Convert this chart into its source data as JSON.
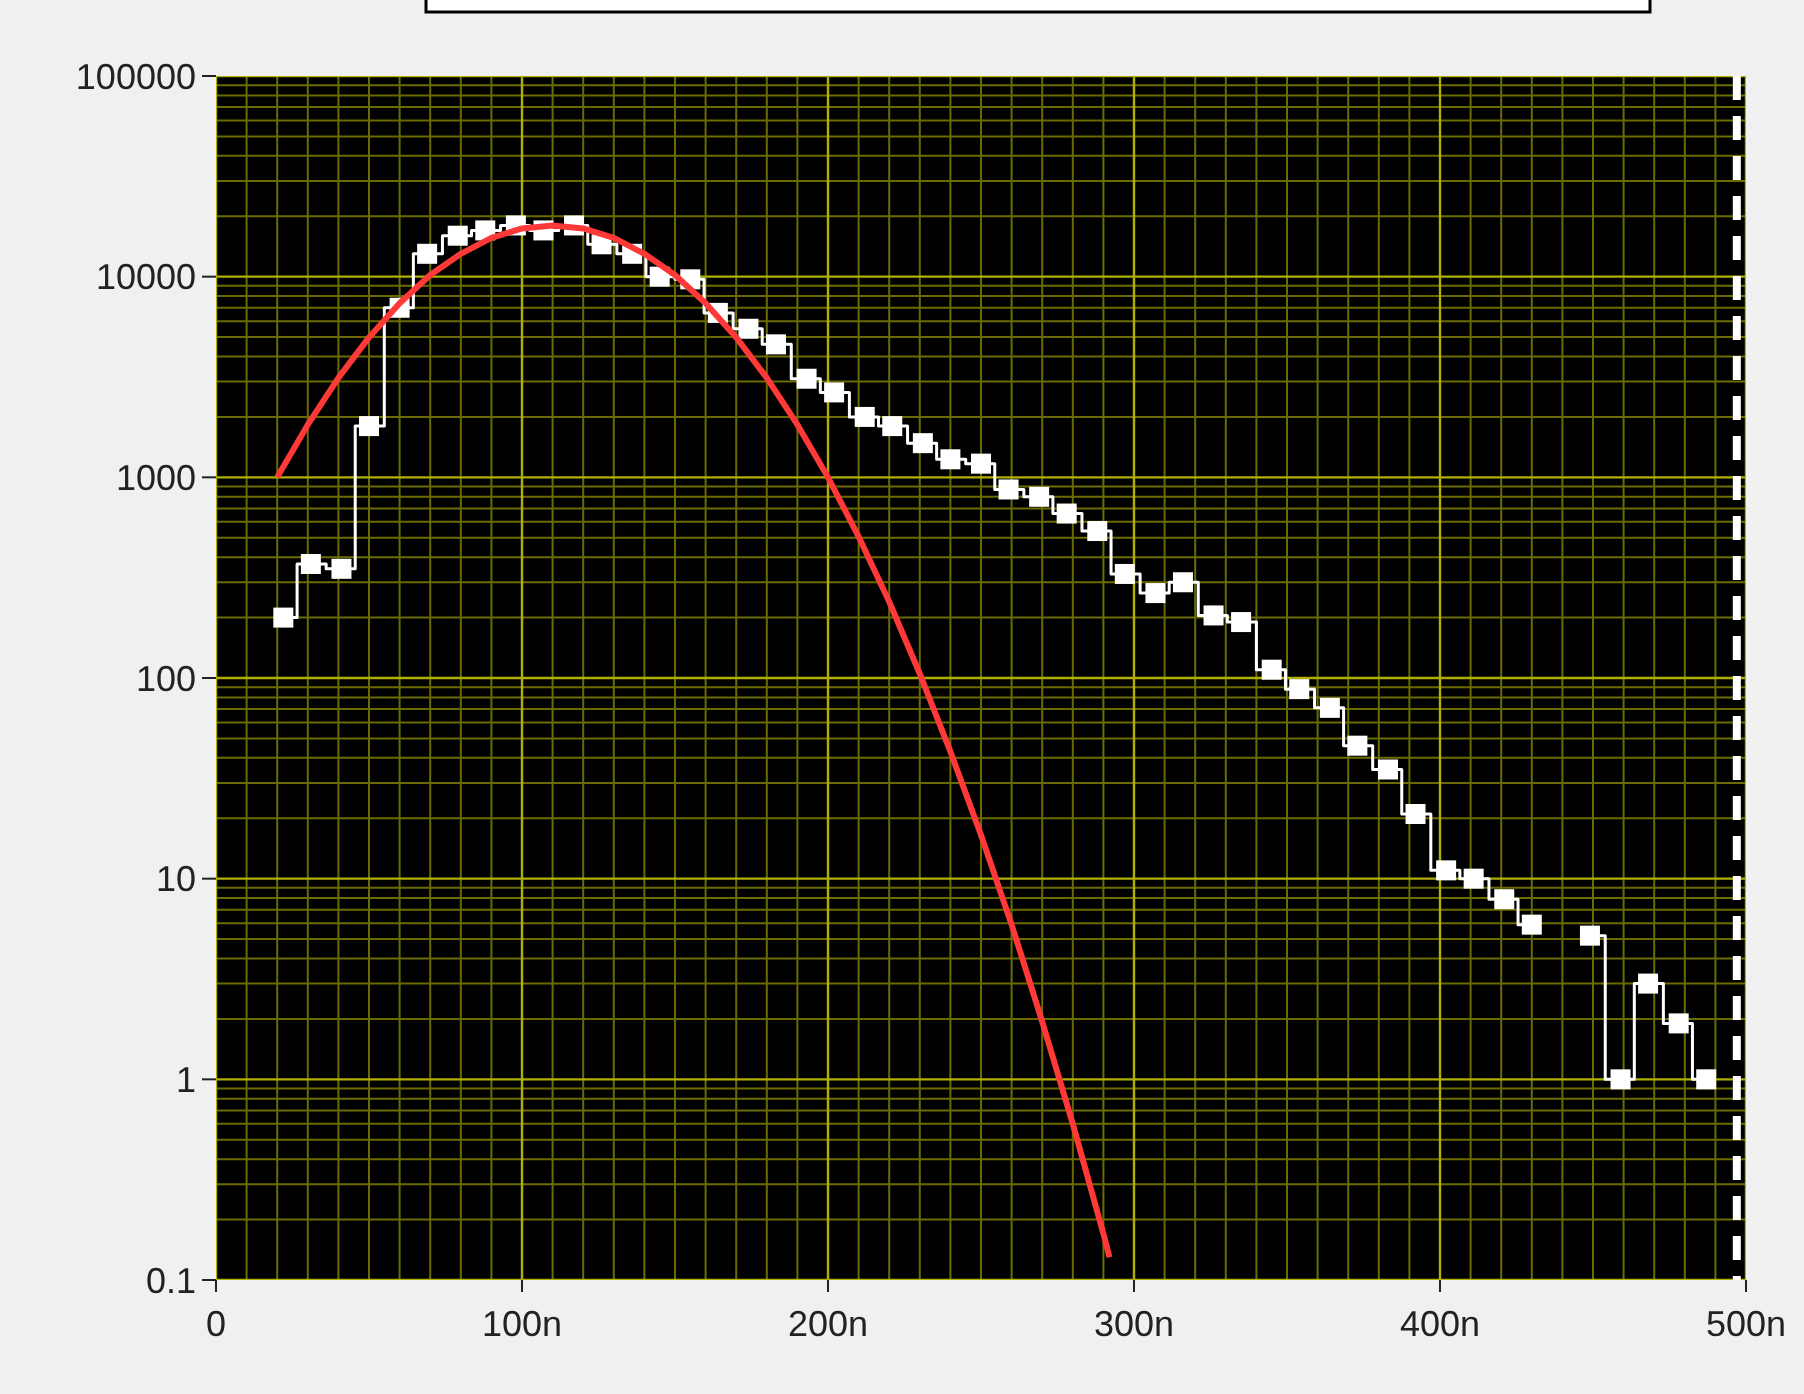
{
  "chart_data": {
    "type": "step",
    "log": "y",
    "grid": true,
    "xlim": [
      0,
      500
    ],
    "xticks": [
      0,
      {
        "value": 10,
        "label": null
      },
      {
        "value": 20,
        "label": null
      },
      {
        "value": 30,
        "label": null
      },
      {
        "value": 40,
        "label": null
      },
      {
        "value": 50,
        "label": null
      },
      {
        "value": 60,
        "label": null
      },
      {
        "value": 70,
        "label": null
      },
      {
        "value": 80,
        "label": null
      },
      {
        "value": 90,
        "label": null
      },
      {
        "value": 100,
        "label": "100n"
      },
      {
        "value": 110,
        "label": null
      },
      {
        "value": 120,
        "label": null
      },
      {
        "value": 130,
        "label": null
      },
      {
        "value": 140,
        "label": null
      },
      {
        "value": 150,
        "label": null
      },
      {
        "value": 160,
        "label": null
      },
      {
        "value": 170,
        "label": null
      },
      {
        "value": 180,
        "label": null
      },
      {
        "value": 190,
        "label": null
      },
      {
        "value": 200,
        "label": "200n"
      },
      {
        "value": 210,
        "label": null
      },
      {
        "value": 220,
        "label": null
      },
      {
        "value": 230,
        "label": null
      },
      {
        "value": 240,
        "label": null
      },
      {
        "value": 250,
        "label": null
      },
      {
        "value": 260,
        "label": null
      },
      {
        "value": 270,
        "label": null
      },
      {
        "value": 280,
        "label": null
      },
      {
        "value": 290,
        "label": null
      },
      {
        "value": 300,
        "label": "300n"
      },
      {
        "value": 310,
        "label": null
      },
      {
        "value": 320,
        "label": null
      },
      {
        "value": 330,
        "label": null
      },
      {
        "value": 340,
        "label": null
      },
      {
        "value": 350,
        "label": null
      },
      {
        "value": 360,
        "label": null
      },
      {
        "value": 370,
        "label": null
      },
      {
        "value": 380,
        "label": null
      },
      {
        "value": 390,
        "label": null
      },
      {
        "value": 400,
        "label": "400n"
      },
      {
        "value": 410,
        "label": null
      },
      {
        "value": 420,
        "label": null
      },
      {
        "value": 430,
        "label": null
      },
      {
        "value": 440,
        "label": null
      },
      {
        "value": 450,
        "label": null
      },
      {
        "value": 460,
        "label": null
      },
      {
        "value": 470,
        "label": null
      },
      {
        "value": 480,
        "label": null
      },
      {
        "value": 490,
        "label": null
      },
      {
        "value": 500,
        "label": "500n"
      }
    ],
    "ylim": [
      0.1,
      100000
    ],
    "yticks": [
      0.1,
      {
        "value": 0.2,
        "label": null
      },
      {
        "value": 0.3,
        "label": null
      },
      {
        "value": 0.4,
        "label": null
      },
      {
        "value": 0.5,
        "label": null
      },
      {
        "value": 0.6,
        "label": null
      },
      {
        "value": 0.7,
        "label": null
      },
      {
        "value": 0.8,
        "label": null
      },
      {
        "value": 0.9,
        "label": null
      },
      1,
      {
        "value": 2,
        "label": null
      },
      {
        "value": 3,
        "label": null
      },
      {
        "value": 4,
        "label": null
      },
      {
        "value": 5,
        "label": null
      },
      {
        "value": 6,
        "label": null
      },
      {
        "value": 7,
        "label": null
      },
      {
        "value": 8,
        "label": null
      },
      {
        "value": 9,
        "label": null
      },
      10,
      {
        "value": 20,
        "label": null
      },
      {
        "value": 30,
        "label": null
      },
      {
        "value": 40,
        "label": null
      },
      {
        "value": 50,
        "label": null
      },
      {
        "value": 60,
        "label": null
      },
      {
        "value": 70,
        "label": null
      },
      {
        "value": 80,
        "label": null
      },
      {
        "value": 90,
        "label": null
      },
      100,
      {
        "value": 200,
        "label": null
      },
      {
        "value": 300,
        "label": null
      },
      {
        "value": 400,
        "label": null
      },
      {
        "value": 500,
        "label": null
      },
      {
        "value": 600,
        "label": null
      },
      {
        "value": 700,
        "label": null
      },
      {
        "value": 800,
        "label": null
      },
      {
        "value": 900,
        "label": null
      },
      1000,
      {
        "value": 2000,
        "label": null
      },
      {
        "value": 3000,
        "label": null
      },
      {
        "value": 4000,
        "label": null
      },
      {
        "value": 5000,
        "label": null
      },
      {
        "value": 6000,
        "label": null
      },
      {
        "value": 7000,
        "label": null
      },
      {
        "value": 8000,
        "label": null
      },
      {
        "value": 9000,
        "label": null
      },
      10000,
      {
        "value": 20000,
        "label": null
      },
      {
        "value": 30000,
        "label": null
      },
      {
        "value": 40000,
        "label": null
      },
      {
        "value": 50000,
        "label": null
      },
      {
        "value": 60000,
        "label": null
      },
      {
        "value": 70000,
        "label": null
      },
      {
        "value": 80000,
        "label": null
      },
      {
        "value": 90000,
        "label": null
      },
      100000
    ],
    "series": [
      {
        "color": "#ffffff",
        "marker": "square",
        "x": [
          22,
          31,
          41,
          50,
          60,
          69,
          79,
          88,
          98,
          107,
          117,
          126,
          136,
          145,
          155,
          164,
          174,
          183,
          193,
          202,
          212,
          221,
          231,
          240,
          250,
          259,
          269,
          278,
          288,
          297,
          307,
          316,
          326,
          335,
          345,
          354,
          364,
          373,
          383,
          392,
          402,
          411,
          421,
          430,
          440,
          449,
          459,
          468,
          478,
          487
        ],
        "values": [
          200,
          370,
          350,
          1800,
          7000,
          13000,
          16000,
          17000,
          18000,
          17000,
          18000,
          14500,
          13000,
          10000,
          9700,
          6600,
          5500,
          4600,
          3100,
          2650,
          2000,
          1800,
          1480,
          1230,
          1170,
          870,
          800,
          660,
          540,
          330,
          265,
          300,
          205,
          190,
          110,
          88,
          71,
          46,
          35,
          21,
          11,
          10,
          7.9,
          5.9,
          null,
          5.2,
          1,
          3,
          1.9,
          1
        ]
      },
      {
        "type": "line",
        "color": "#ff3838",
        "marker": "none",
        "x": [
          20,
          30,
          40,
          50,
          60,
          70,
          80,
          90,
          100,
          110,
          120,
          130,
          140,
          150,
          160,
          170,
          180,
          190,
          200,
          210,
          220,
          230,
          240,
          250,
          260,
          270,
          280,
          290,
          292
        ],
        "values": [
          1000,
          1830,
          3130,
          4980,
          7370,
          10200,
          13000,
          15600,
          17400,
          18000,
          17400,
          15600,
          13000,
          10200,
          7370,
          4980,
          3130,
          1830,
          1000,
          507,
          240,
          105,
          43,
          16.5,
          5.9,
          1.94,
          0.6,
          0.17,
          0.13
        ]
      }
    ],
    "ref_lines": [
      {
        "axis": "x",
        "value": 497,
        "color": "#ffffff",
        "line_style": "dashed"
      }
    ]
  }
}
